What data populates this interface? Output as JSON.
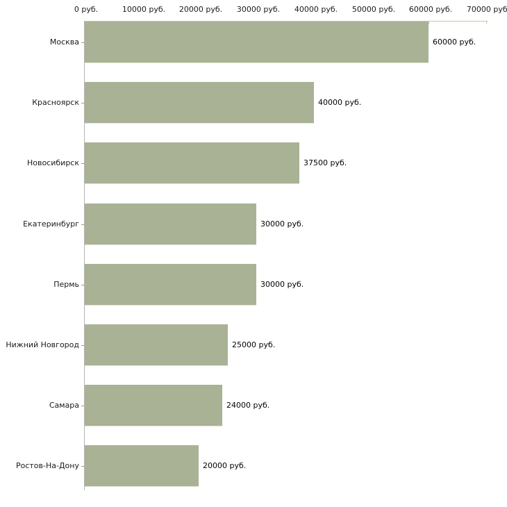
{
  "chart_data": {
    "type": "bar",
    "orientation": "horizontal",
    "title": "",
    "xlabel": "",
    "ylabel": "",
    "grid": "off",
    "legend": "none",
    "categories": [
      "Москва",
      "Красноярск",
      "Новосибирск",
      "Екатеринбург",
      "Пермь",
      "Нижний Новгород",
      "Самара",
      "Ростов-На-Дону"
    ],
    "values": [
      60000,
      40000,
      37500,
      30000,
      30000,
      25000,
      24000,
      20000
    ],
    "value_labels": [
      "60000 руб.",
      "40000 руб.",
      "37500 руб.",
      "30000 руб.",
      "30000 руб.",
      "25000 руб.",
      "24000 руб.",
      "20000 руб."
    ],
    "x_ticks": [
      0,
      10000,
      20000,
      30000,
      40000,
      50000,
      60000,
      70000
    ],
    "x_tick_labels": [
      "0 руб.",
      "10000 руб.",
      "20000 руб.",
      "30000 руб.",
      "40000 руб.",
      "50000 руб.",
      "60000 руб.",
      "70000 руб."
    ],
    "xlim": [
      0,
      70000
    ],
    "colors": {
      "bar_fill": "#aab296",
      "bar_bottom_edge": "#e2e6d8",
      "xaxis_line": "#c8c8a5",
      "xaxis_tick": "#c8c8a5",
      "yaxis_line": "#b3b3b3",
      "category_tick": "#a2a25c",
      "tick_label_text": "#1a1a1a",
      "value_label_text": "#000000",
      "background": "#ffffff"
    }
  }
}
